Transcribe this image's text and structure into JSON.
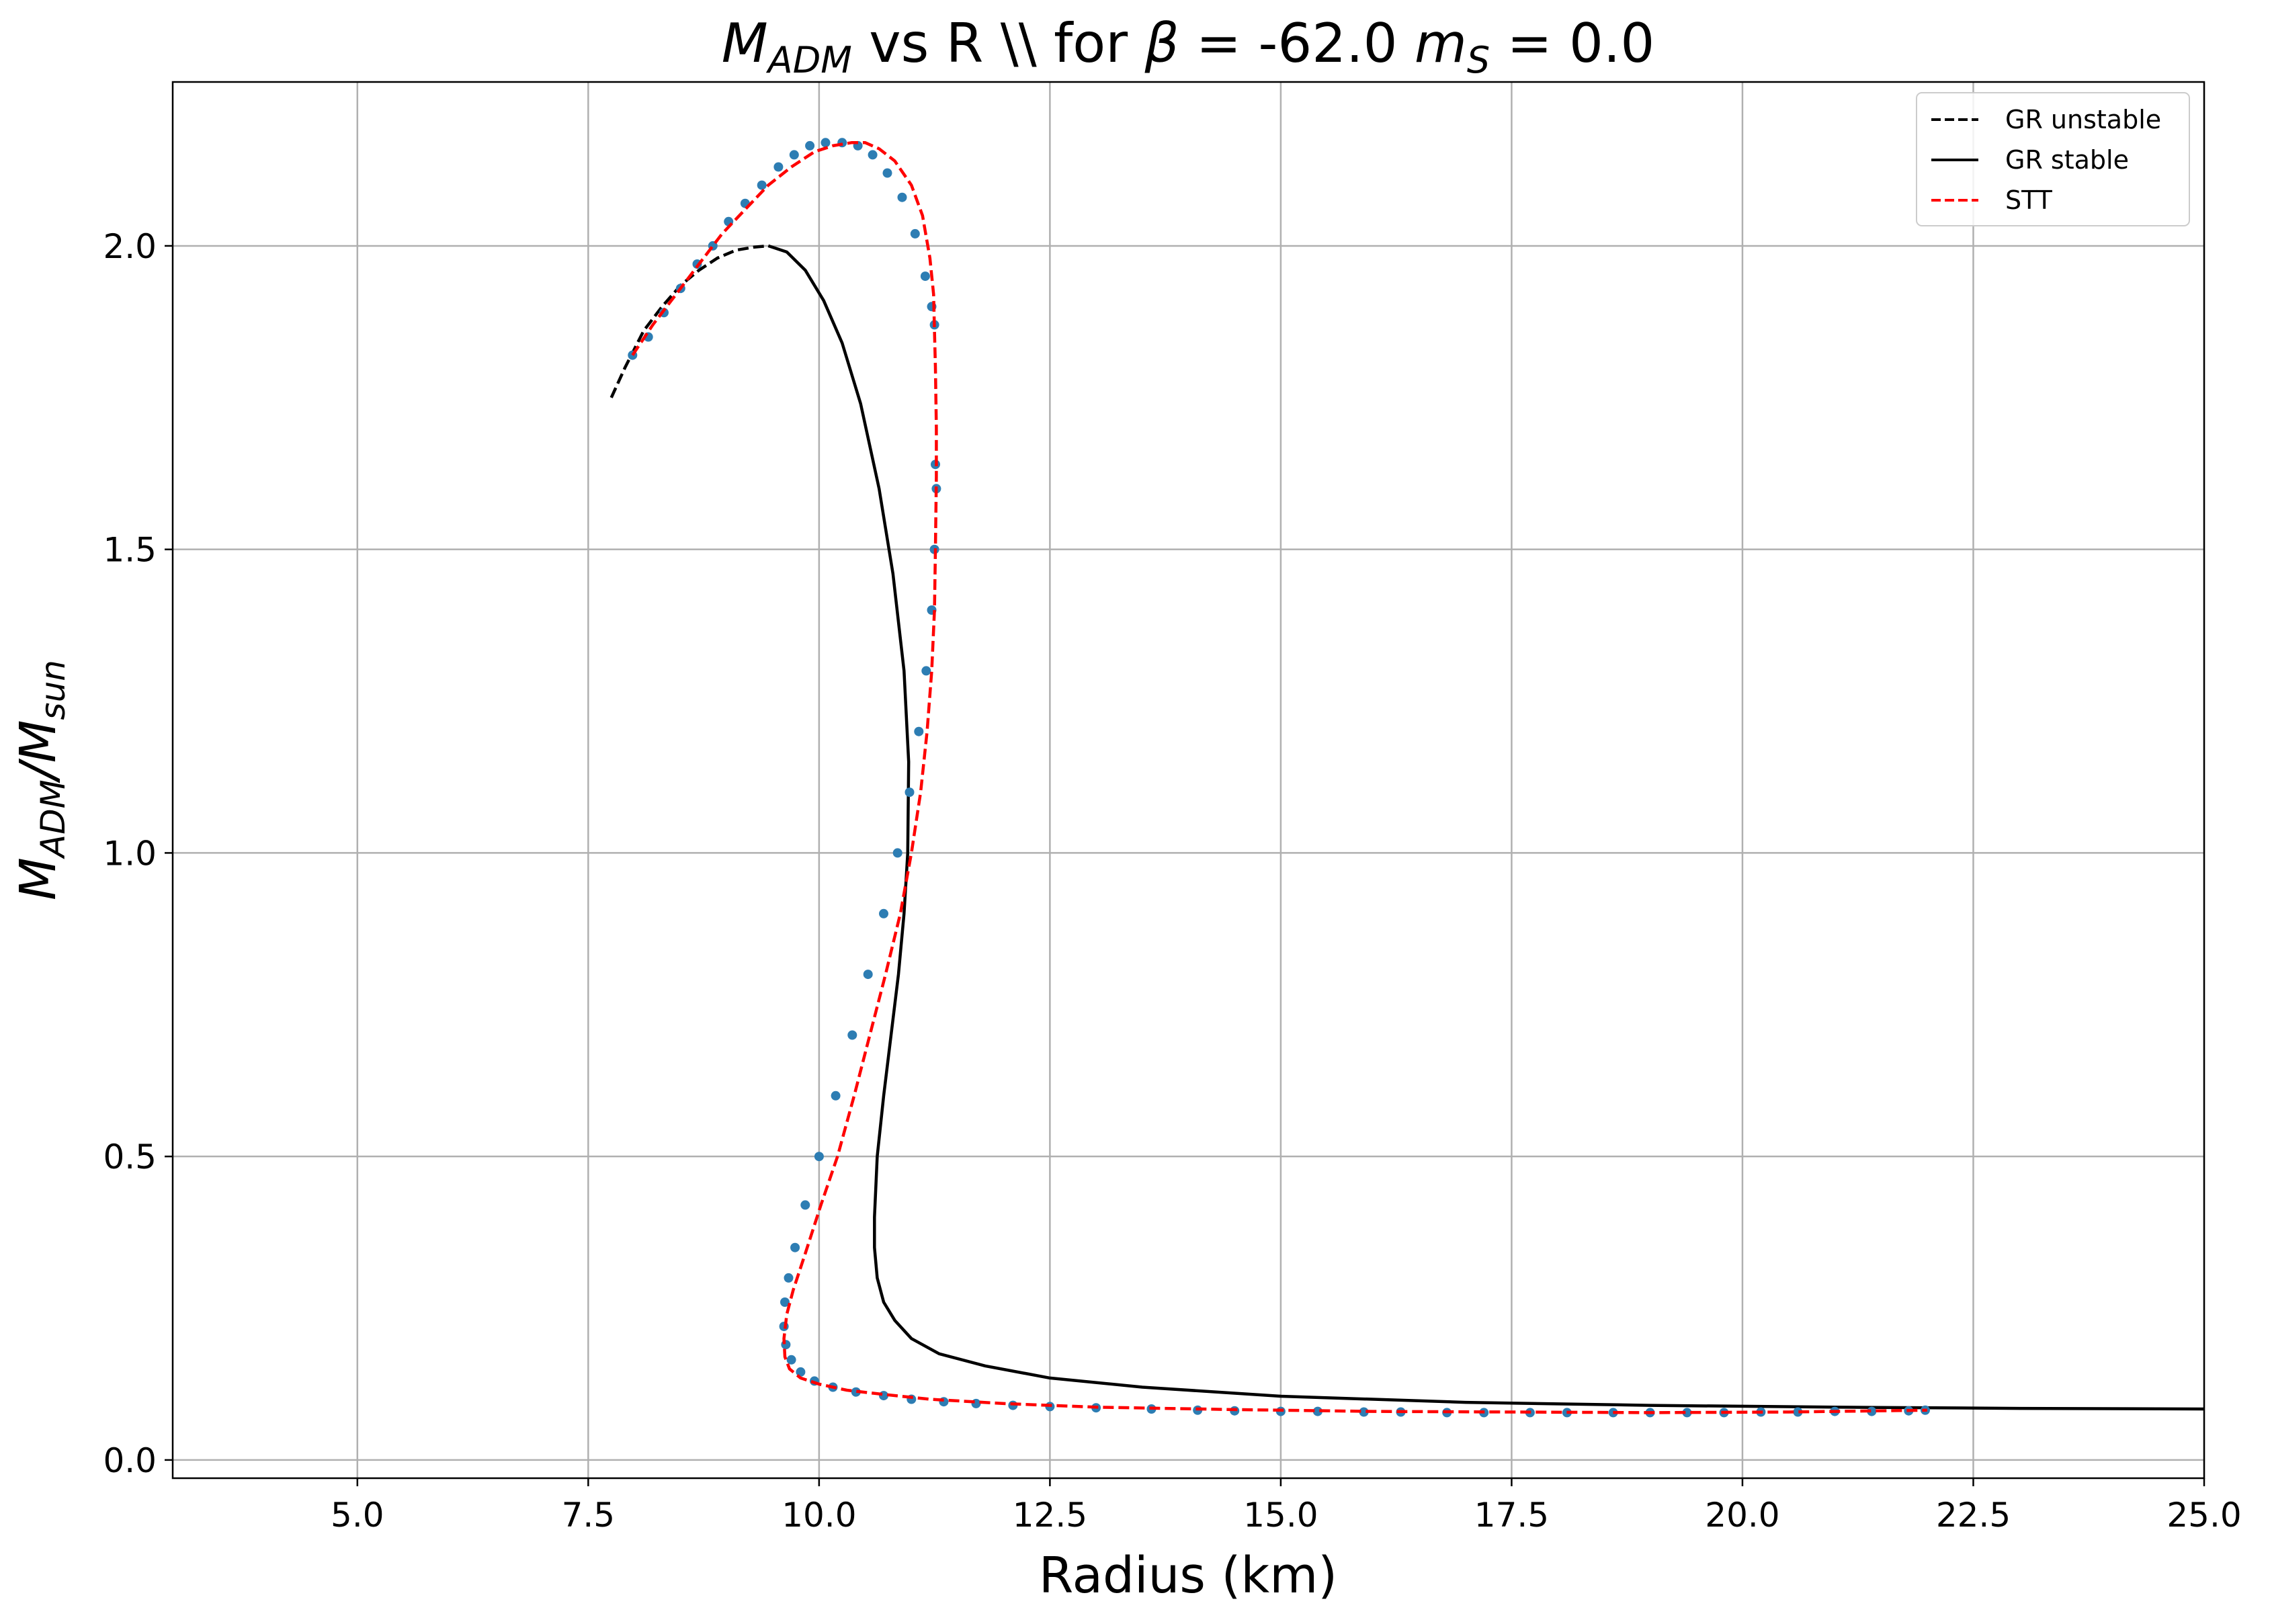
{
  "chart_data": {
    "type": "line",
    "title": "$M_{ADM}$ vs R \\\\ for $\\beta=$-62.0 $m_S=$0.0",
    "title_parts": {
      "m_symbol": "M",
      "m_subscript": "ADM",
      "middle": " vs R \\\\ for ",
      "beta_symbol": "β",
      "beta_eq": " = -62.0 ",
      "ms_symbol": "m",
      "ms_subscript": "S",
      "ms_eq": " = 0.0"
    },
    "xlabel": "Radius (km)",
    "ylabel": "$M_{ADM}/M_{sun}$",
    "ylabel_parts": {
      "m1": "M",
      "sub1": "ADM",
      "slash": "/",
      "m2": "M",
      "sub2": "sun"
    },
    "xlim": [
      3.0,
      25.0
    ],
    "ylim": [
      -0.03,
      2.27
    ],
    "xticks": [
      5.0,
      7.5,
      10.0,
      12.5,
      15.0,
      17.5,
      20.0,
      22.5,
      25.0
    ],
    "xtick_labels": [
      "5.0",
      "7.5",
      "10.0",
      "12.5",
      "15.0",
      "17.5",
      "20.0",
      "22.5",
      "25.0"
    ],
    "yticks": [
      0.0,
      0.5,
      1.0,
      1.5,
      2.0
    ],
    "ytick_labels": [
      "0.0",
      "0.5",
      "1.0",
      "1.5",
      "2.0"
    ],
    "grid": true,
    "legend_position": "top-right",
    "series": [
      {
        "name": "GR unstable",
        "style": "dashed",
        "color": "#000000",
        "x": [
          7.75,
          7.9,
          8.1,
          8.3,
          8.5,
          8.7,
          8.9,
          9.1,
          9.3,
          9.45
        ],
        "y": [
          1.75,
          1.8,
          1.86,
          1.9,
          1.935,
          1.96,
          1.98,
          1.993,
          1.998,
          2.0
        ]
      },
      {
        "name": "GR stable",
        "style": "solid",
        "color": "#000000",
        "x": [
          9.45,
          9.65,
          9.85,
          10.05,
          10.25,
          10.45,
          10.65,
          10.8,
          10.92,
          10.97,
          10.96,
          10.92,
          10.86,
          10.78,
          10.7,
          10.63,
          10.6,
          10.6,
          10.63,
          10.7,
          10.82,
          11.0,
          11.3,
          11.8,
          12.5,
          13.5,
          15.0,
          17.0,
          19.0,
          21.0,
          23.0,
          25.0
        ],
        "y": [
          2.0,
          1.99,
          1.96,
          1.91,
          1.84,
          1.74,
          1.6,
          1.46,
          1.3,
          1.15,
          1.0,
          0.9,
          0.8,
          0.7,
          0.6,
          0.5,
          0.4,
          0.35,
          0.3,
          0.26,
          0.23,
          0.2,
          0.175,
          0.155,
          0.135,
          0.12,
          0.105,
          0.095,
          0.09,
          0.087,
          0.085,
          0.084
        ]
      },
      {
        "name": "STT",
        "style": "dashed",
        "color": "#ff0000",
        "x": [
          7.98,
          8.2,
          8.45,
          8.7,
          8.95,
          9.2,
          9.45,
          9.7,
          9.95,
          10.15,
          10.35,
          10.5,
          10.65,
          10.82,
          11.0,
          11.12,
          11.2,
          11.24,
          11.25,
          11.26,
          11.27,
          11.27,
          11.26,
          11.25,
          11.22,
          11.17,
          11.1,
          11.0,
          10.88,
          10.72,
          10.55,
          10.38,
          10.2,
          10.02,
          9.85,
          9.72,
          9.65,
          9.62,
          9.63,
          9.68,
          9.8,
          10.0,
          10.3,
          10.7,
          11.2,
          12.0,
          13.0,
          14.5,
          16.0,
          17.5,
          19.0,
          20.5,
          22.0
        ],
        "y": [
          1.82,
          1.87,
          1.92,
          1.97,
          2.02,
          2.06,
          2.1,
          2.13,
          2.155,
          2.165,
          2.17,
          2.17,
          2.16,
          2.14,
          2.1,
          2.05,
          1.98,
          1.92,
          1.86,
          1.8,
          1.7,
          1.62,
          1.5,
          1.4,
          1.3,
          1.2,
          1.1,
          1.0,
          0.9,
          0.8,
          0.7,
          0.6,
          0.5,
          0.42,
          0.34,
          0.28,
          0.24,
          0.2,
          0.17,
          0.15,
          0.135,
          0.125,
          0.115,
          0.108,
          0.1,
          0.093,
          0.087,
          0.083,
          0.08,
          0.079,
          0.078,
          0.079,
          0.082
        ]
      }
    ],
    "scatter_markers": {
      "color": "#2d7db3",
      "x": [
        7.98,
        8.15,
        8.32,
        8.5,
        8.68,
        8.85,
        9.02,
        9.2,
        9.38,
        9.56,
        9.73,
        9.9,
        10.07,
        10.25,
        10.42,
        10.58,
        10.74,
        10.9,
        11.04,
        11.15,
        11.22,
        11.25,
        11.26,
        11.27,
        11.25,
        11.22,
        11.16,
        11.08,
        10.98,
        10.85,
        10.7,
        10.53,
        10.36,
        10.18,
        10.0,
        9.85,
        9.74,
        9.67,
        9.63,
        9.62,
        9.64,
        9.7,
        9.8,
        9.95,
        10.15,
        10.4,
        10.7,
        11.0,
        11.35,
        11.7,
        12.1,
        12.5,
        13.0,
        13.6,
        14.1,
        14.5,
        15.0,
        15.4,
        15.9,
        16.3,
        16.8,
        17.2,
        17.7,
        18.1,
        18.6,
        19.0,
        19.4,
        19.8,
        20.2,
        20.6,
        21.0,
        21.4,
        21.8,
        21.98
      ],
      "y": [
        1.82,
        1.85,
        1.89,
        1.93,
        1.97,
        2.0,
        2.04,
        2.07,
        2.1,
        2.13,
        2.15,
        2.165,
        2.17,
        2.17,
        2.165,
        2.15,
        2.12,
        2.08,
        2.02,
        1.95,
        1.9,
        1.87,
        1.64,
        1.6,
        1.5,
        1.4,
        1.3,
        1.2,
        1.1,
        1.0,
        0.9,
        0.8,
        0.7,
        0.6,
        0.5,
        0.42,
        0.35,
        0.3,
        0.26,
        0.22,
        0.19,
        0.165,
        0.145,
        0.13,
        0.12,
        0.112,
        0.106,
        0.1,
        0.096,
        0.093,
        0.09,
        0.088,
        0.086,
        0.084,
        0.082,
        0.081,
        0.08,
        0.08,
        0.079,
        0.079,
        0.078,
        0.078,
        0.078,
        0.078,
        0.078,
        0.078,
        0.078,
        0.078,
        0.079,
        0.079,
        0.08,
        0.08,
        0.081,
        0.082
      ]
    }
  }
}
